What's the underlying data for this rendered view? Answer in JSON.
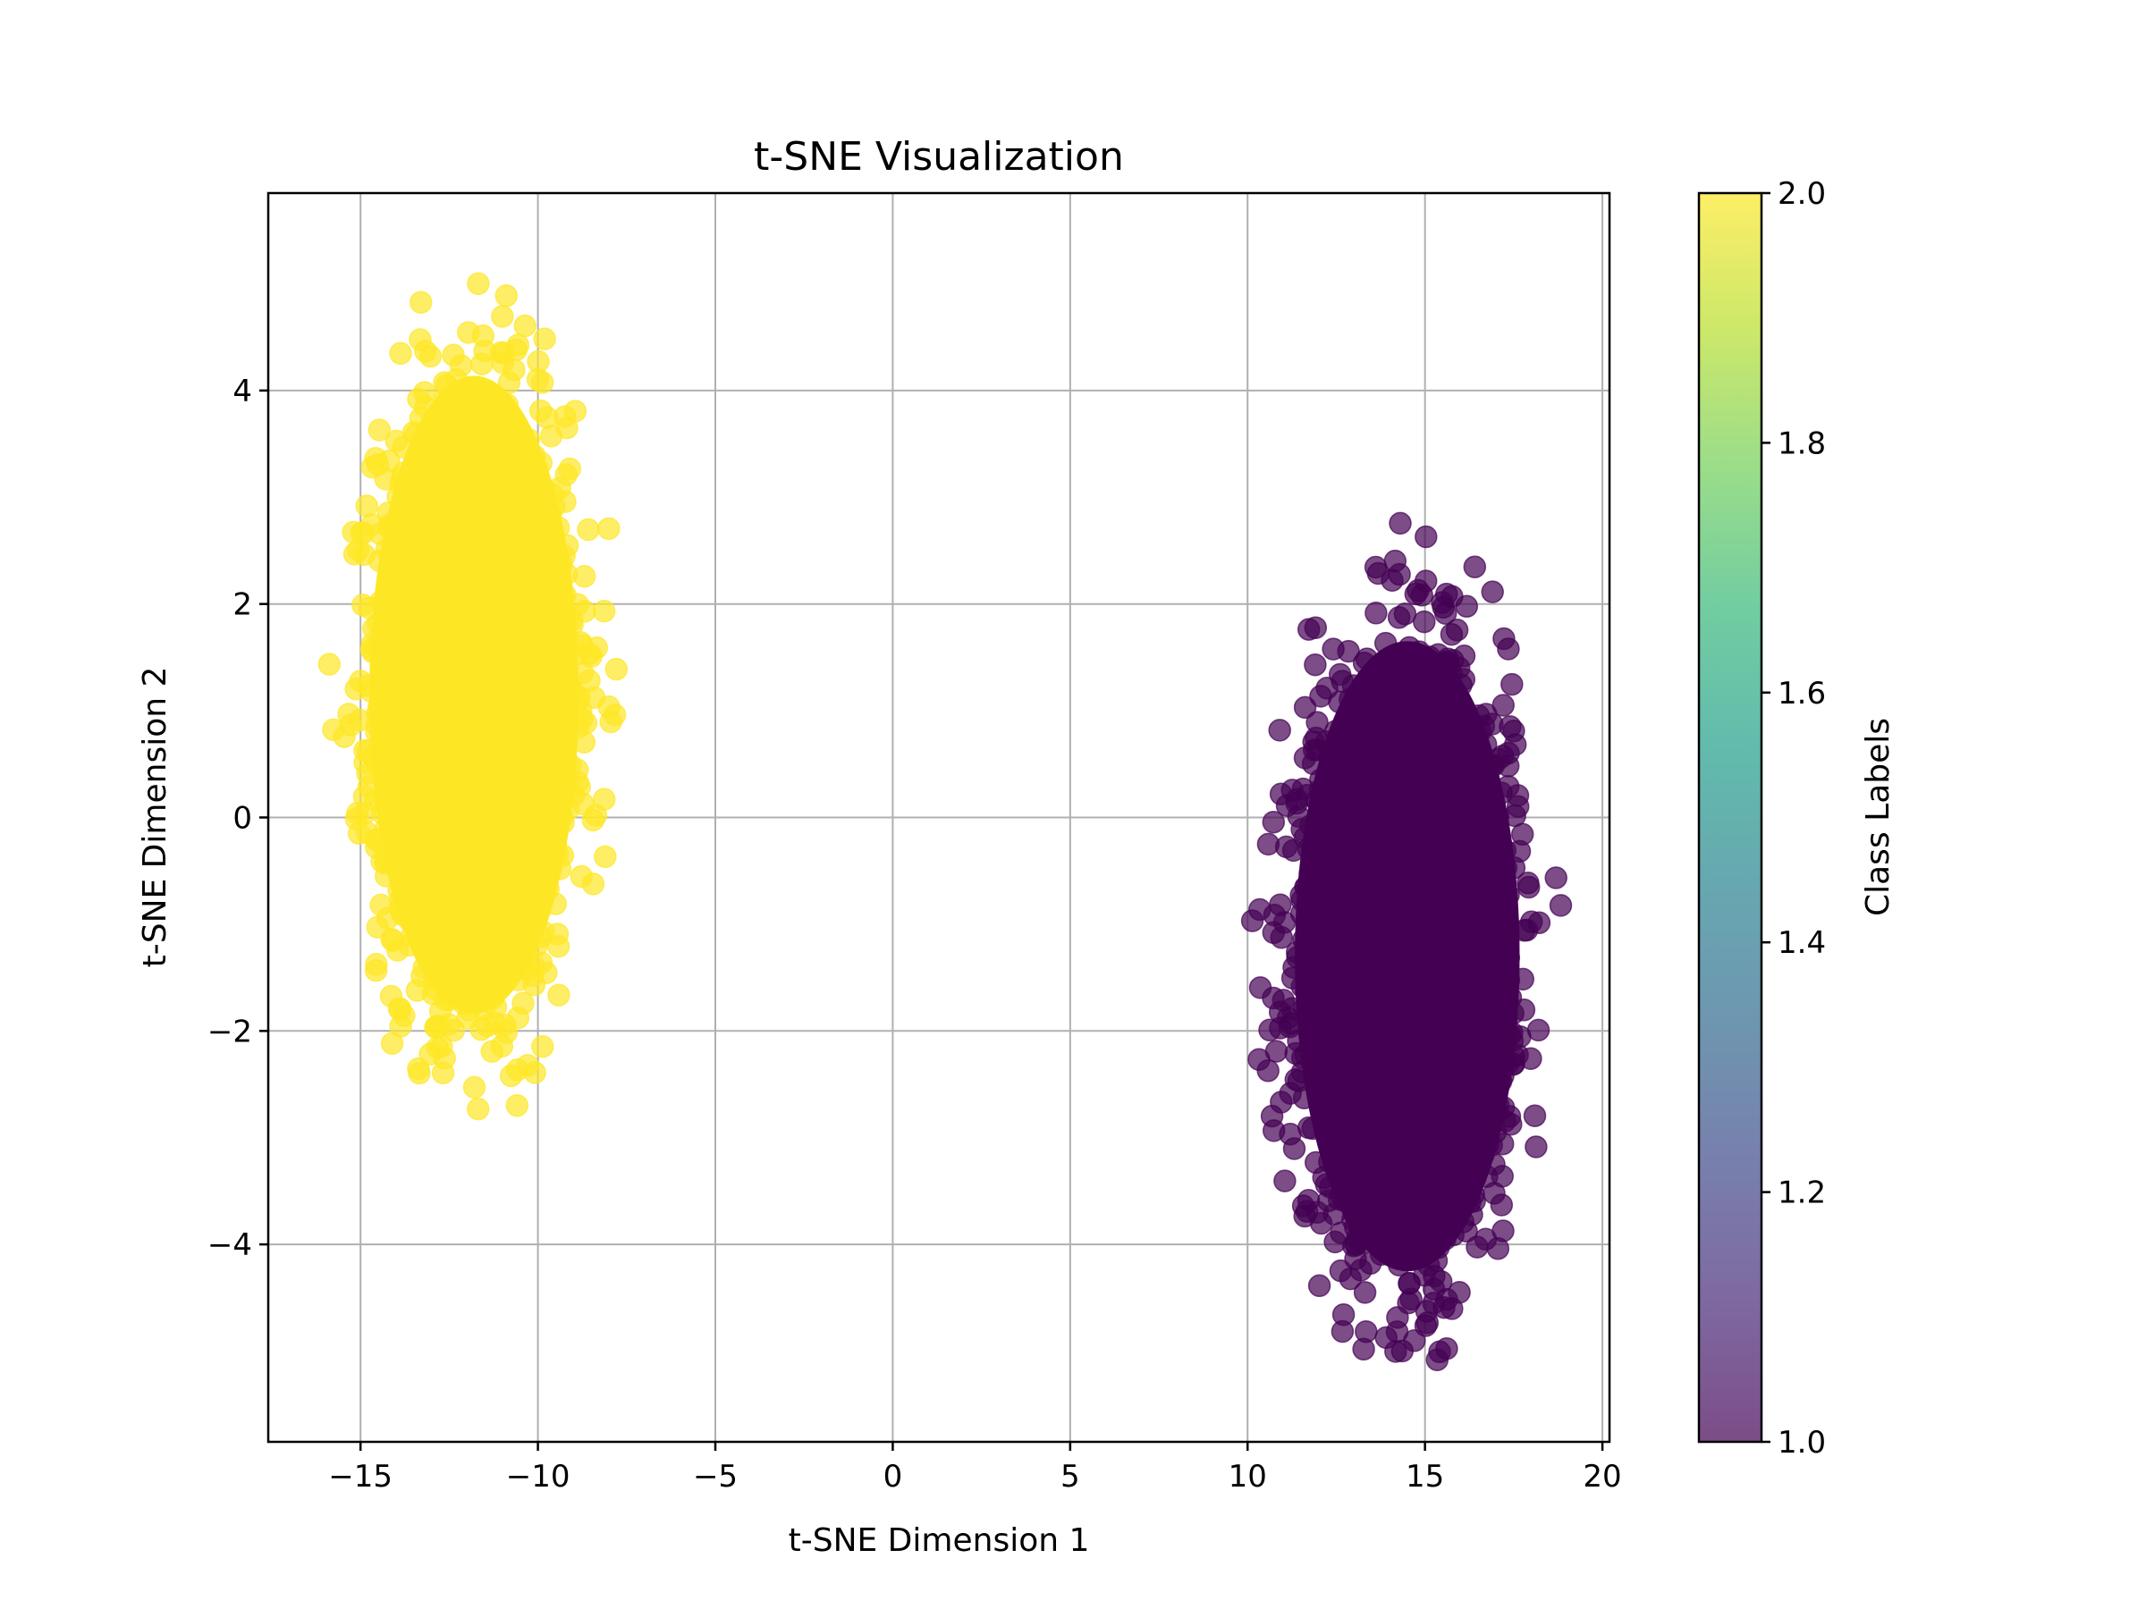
{
  "chart_data": {
    "type": "scatter",
    "title": "t-SNE Visualization",
    "xlabel": "t-SNE Dimension 1",
    "ylabel": "t-SNE Dimension 2",
    "xlim": [
      -17.6,
      20.2
    ],
    "ylim": [
      -5.85,
      5.85
    ],
    "xticks": [
      -15,
      -10,
      -5,
      0,
      5,
      10,
      15,
      20
    ],
    "xtick_labels": [
      "−15",
      "−10",
      "−5",
      "0",
      "5",
      "10",
      "15",
      "20"
    ],
    "yticks": [
      -4,
      -2,
      0,
      2,
      4
    ],
    "ytick_labels": [
      "−4",
      "−2",
      "0",
      "2",
      "4"
    ],
    "grid": true,
    "marker_alpha": 0.7,
    "clusters": [
      {
        "class_label": 2,
        "color": "#fde725",
        "center": [
          -11.8,
          1.15
        ],
        "x_range": [
          -15.9,
          -7.7
        ],
        "y_range": [
          -3.0,
          5.3
        ],
        "approx_points": 2500
      },
      {
        "class_label": 1,
        "color": "#440154",
        "center": [
          14.5,
          -1.3
        ],
        "x_range": [
          10.0,
          18.8
        ],
        "y_range": [
          -5.4,
          2.8
        ],
        "approx_points": 2500
      }
    ],
    "colorbar": {
      "label": "Class Labels",
      "colormap": "viridis",
      "range": [
        1.0,
        2.0
      ],
      "ticks": [
        1.0,
        1.2,
        1.4,
        1.6,
        1.8,
        2.0
      ],
      "tick_labels": [
        "1.0",
        "1.2",
        "1.4",
        "1.6",
        "1.8",
        "2.0"
      ],
      "stops": [
        "#440154",
        "#482878",
        "#3e4989",
        "#31688e",
        "#26828e",
        "#1f9e89",
        "#35b779",
        "#6ece58",
        "#b5de2b",
        "#fde725"
      ]
    }
  }
}
